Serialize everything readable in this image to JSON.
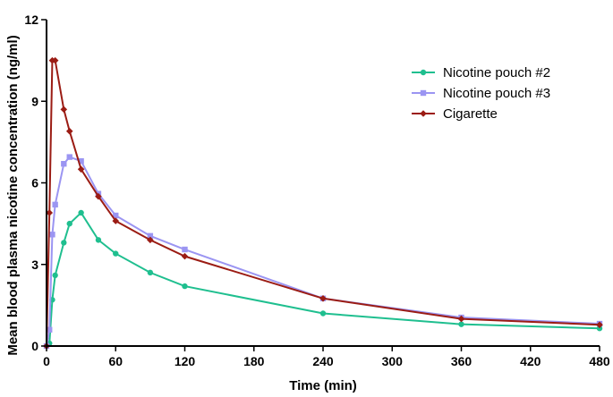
{
  "chart_data": {
    "type": "line",
    "xlabel": "Time (min)",
    "ylabel": "Mean blood plasma nicotine concentration (ng/ml)",
    "xlim": [
      0,
      480
    ],
    "ylim": [
      0,
      12
    ],
    "xticks": [
      0,
      60,
      120,
      180,
      240,
      300,
      360,
      420,
      480
    ],
    "yticks": [
      0,
      3,
      6,
      9,
      12
    ],
    "grid": false,
    "legend_position": "top-right",
    "series": [
      {
        "name": "Nicotine pouch #2",
        "color": "#1fbf8f",
        "marker": "circle",
        "x": [
          0,
          2.5,
          5,
          7.5,
          15,
          20,
          30,
          45,
          60,
          90,
          120,
          240,
          360,
          480
        ],
        "y": [
          0,
          0.1,
          1.7,
          2.6,
          3.8,
          4.5,
          4.9,
          3.9,
          3.4,
          2.7,
          2.2,
          1.2,
          0.8,
          0.65
        ]
      },
      {
        "name": "Nicotine pouch #3",
        "color": "#9b95f2",
        "marker": "square",
        "x": [
          0,
          2.5,
          5,
          7.5,
          15,
          20,
          30,
          45,
          60,
          90,
          120,
          240,
          360,
          480
        ],
        "y": [
          0,
          0.6,
          4.1,
          5.2,
          6.7,
          6.95,
          6.8,
          5.6,
          4.8,
          4.05,
          3.55,
          1.75,
          1.05,
          0.82
        ]
      },
      {
        "name": "Cigarette",
        "color": "#9b1c14",
        "marker": "diamond",
        "x": [
          0,
          2.5,
          5,
          7.5,
          15,
          20,
          30,
          45,
          60,
          90,
          120,
          240,
          360,
          480
        ],
        "y": [
          0,
          4.9,
          10.5,
          10.5,
          8.7,
          7.9,
          6.5,
          5.5,
          4.6,
          3.9,
          3.3,
          1.75,
          1.0,
          0.78
        ]
      }
    ]
  }
}
